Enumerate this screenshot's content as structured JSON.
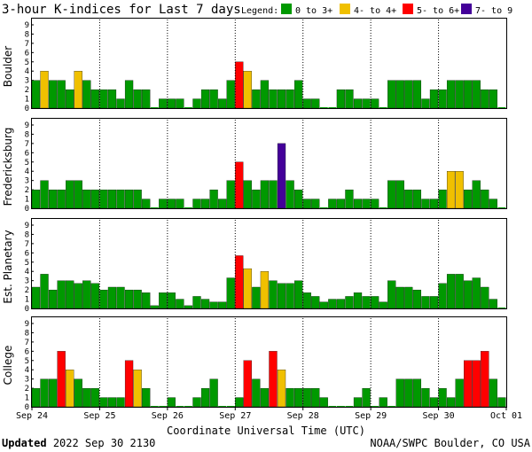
{
  "title": "3-hour K-indices for Last 7 days",
  "legend": {
    "label": "Legend:",
    "items": [
      {
        "text": "0 to 3+",
        "color": "#009900"
      },
      {
        "text": "4- to 4+",
        "color": "#f0c000"
      },
      {
        "text": "5- to 6+",
        "color": "#ff0000"
      },
      {
        "text": "7- to 9",
        "color": "#440099"
      }
    ]
  },
  "footer": {
    "updated_label": "Updated",
    "updated_value": "2022 Sep 30 2130",
    "source": "NOAA/SWPC Boulder, CO USA"
  },
  "chart_data": {
    "type": "bar",
    "xlabel": "Coordinate Universal Time (UTC)",
    "x_ticks": [
      "Sep 24",
      "Sep 25",
      "Sep 26",
      "Sep 27",
      "Sep 28",
      "Sep 29",
      "Sep 30",
      "Oct 01"
    ],
    "y_ticks": [
      "0",
      "1",
      "2",
      "3",
      "4",
      "5",
      "6",
      "7",
      "8",
      "9"
    ],
    "ylim": [
      0,
      9
    ],
    "intervals_per_day": 8,
    "panels": [
      {
        "ylabel": "Boulder",
        "values": [
          3,
          4,
          3,
          3,
          2,
          4,
          3,
          2,
          2,
          2,
          1,
          3,
          2,
          2,
          0,
          1,
          1,
          1,
          0,
          1,
          2,
          2,
          1,
          3,
          5,
          4,
          2,
          3,
          2,
          2,
          2,
          3,
          1,
          1,
          0,
          0,
          2,
          2,
          1,
          1,
          1,
          0,
          3,
          3,
          3,
          3,
          1,
          2,
          2,
          3,
          3,
          3,
          3,
          2,
          2,
          0
        ]
      },
      {
        "ylabel": "Fredericksburg",
        "values": [
          2,
          3,
          2,
          2,
          3,
          3,
          2,
          2,
          2,
          2,
          2,
          2,
          2,
          1,
          0,
          1,
          1,
          1,
          0,
          1,
          1,
          2,
          1,
          3,
          5,
          3,
          2,
          3,
          3,
          7,
          3,
          2,
          1,
          1,
          0,
          1,
          1,
          2,
          1,
          1,
          1,
          0,
          3,
          3,
          2,
          2,
          1,
          1,
          2,
          4,
          4,
          2,
          3,
          2,
          1,
          0
        ]
      },
      {
        "ylabel": "Est. Planetary",
        "values": [
          2.3,
          3.7,
          2,
          3,
          3,
          2.7,
          3,
          2.7,
          2,
          2.3,
          2.3,
          2,
          2,
          1.7,
          0.3,
          1.7,
          1.7,
          1,
          0.3,
          1.3,
          1,
          0.7,
          0.7,
          3.3,
          5.7,
          4.3,
          2.3,
          4,
          3,
          2.7,
          2.7,
          3,
          1.7,
          1.3,
          0.7,
          1,
          1,
          1.3,
          1.7,
          1.3,
          1.3,
          0.7,
          3,
          2.3,
          2.3,
          2,
          1.3,
          1.3,
          2.7,
          3.7,
          3.7,
          3,
          3.3,
          2.3,
          1,
          0
        ]
      },
      {
        "ylabel": "College",
        "values": [
          2,
          3,
          3,
          6,
          4,
          3,
          2,
          2,
          1,
          1,
          1,
          5,
          4,
          2,
          0,
          0,
          1,
          0,
          0,
          1,
          2,
          3,
          0,
          0,
          1,
          5,
          3,
          2,
          6,
          4,
          2,
          2,
          2,
          2,
          1,
          0,
          0,
          0,
          1,
          2,
          0,
          1,
          0,
          3,
          3,
          3,
          2,
          1,
          2,
          1,
          3,
          5,
          5,
          6,
          3,
          1
        ]
      }
    ]
  }
}
